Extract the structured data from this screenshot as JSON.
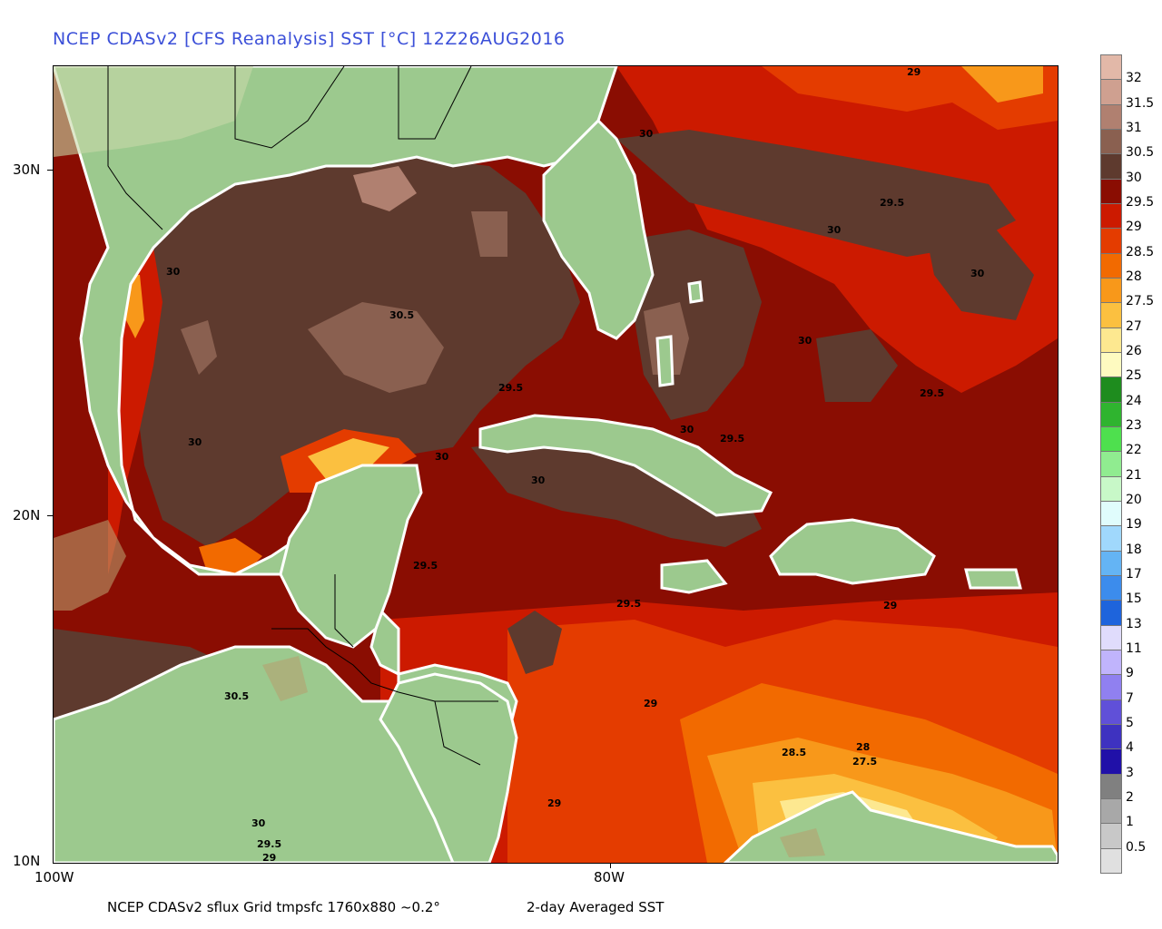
{
  "title": "NCEP CDASv2 [CFS Reanalysis] SST [°C] 12Z26AUG2016",
  "footer": {
    "left": "NCEP CDASv2 sflux Grid tmpsfc 1760x880 ~0.2°",
    "right": "2-day Averaged SST"
  },
  "axes": {
    "y_ticks": [
      "30N",
      "20N",
      "10N"
    ],
    "x_ticks": [
      "100W",
      "80W"
    ]
  },
  "map": {
    "region": {
      "lon_range": [
        -100,
        -64
      ],
      "lat_range": [
        10,
        33
      ]
    },
    "contour_labels": [
      "29",
      "30",
      "29.5",
      "30",
      "30",
      "30",
      "30.5",
      "30",
      "29.5",
      "29.5",
      "30",
      "30",
      "29.5",
      "30",
      "30",
      "29.5",
      "29.5",
      "29",
      "30.5",
      "29",
      "28.5",
      "28",
      "27.5",
      "29",
      "30",
      "29.5",
      "29"
    ]
  },
  "colorbar": {
    "labels": [
      "32",
      "31.5",
      "31",
      "30.5",
      "30",
      "29.5",
      "29",
      "28.5",
      "28",
      "27.5",
      "27",
      "26",
      "25",
      "24",
      "23",
      "22",
      "21",
      "20",
      "19",
      "18",
      "17",
      "15",
      "13",
      "11",
      "9",
      "7",
      "5",
      "4",
      "3",
      "2",
      "1",
      "0.5"
    ],
    "colors": [
      "#e2b8a8",
      "#cfa090",
      "#b08070",
      "#8a6050",
      "#5e3a2e",
      "#8a0d02",
      "#cc1a00",
      "#e43c00",
      "#f26a00",
      "#f8981a",
      "#fbc040",
      "#fde890",
      "#fefac0",
      "#1e8c1e",
      "#2fb42f",
      "#4ee04e",
      "#90ec90",
      "#c8f8c8",
      "#e0fcfc",
      "#a0d8fc",
      "#64b4f4",
      "#3c8cec",
      "#1e64dc",
      "#e0dcfc",
      "#c0b4fc",
      "#9080f0",
      "#6050d8",
      "#3e32c0",
      "#2010a8",
      "#808080",
      "#a8a8a8",
      "#c8c8c8",
      "#e0e0e0"
    ]
  }
}
